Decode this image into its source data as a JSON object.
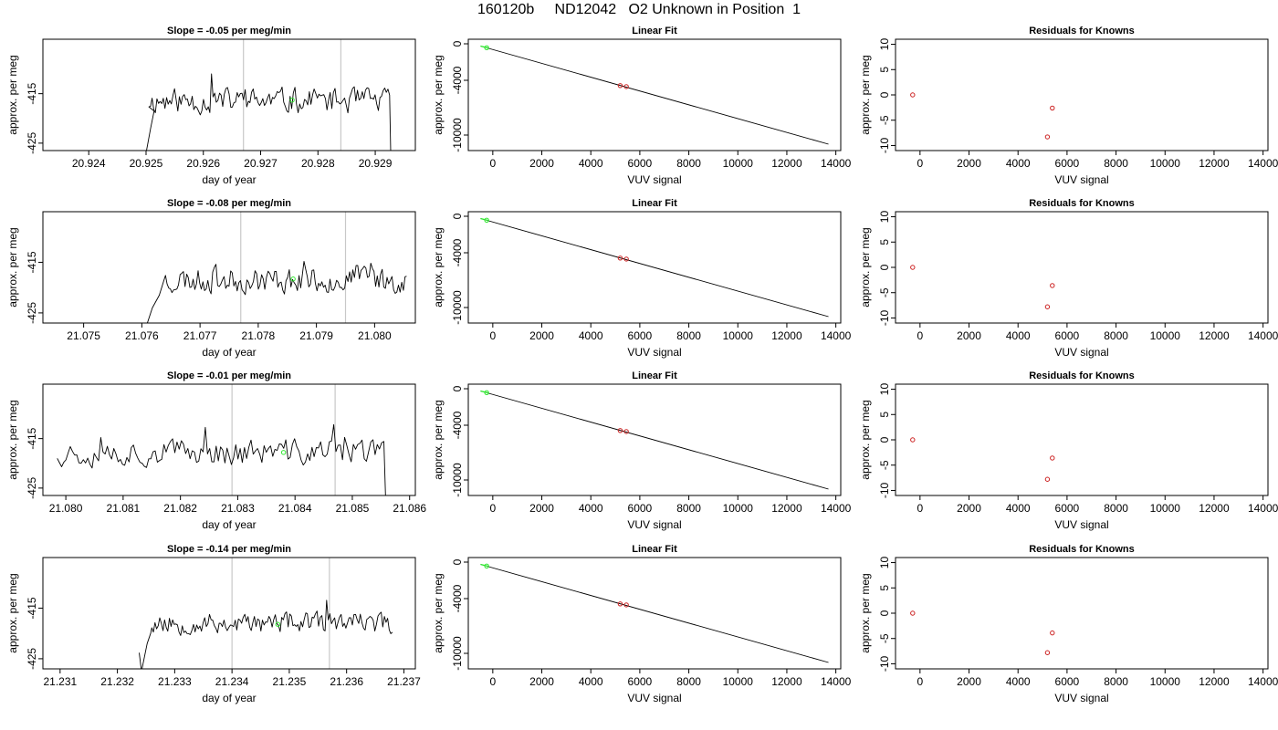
{
  "figure": {
    "title": "160120b     ND12042   O2 Unknown in Position  1",
    "colors": {
      "line": "#000000",
      "green": "#2ee82e",
      "red": "#cc2222",
      "vline": "#c8c8c8"
    }
  },
  "chart_data": [
    {
      "type": "line",
      "row": 0,
      "col": 0,
      "title": "Slope =  -0.05  per meg/min",
      "xlabel": "day of year",
      "ylabel": "approx. per meg",
      "xlim": [
        20.9232,
        20.9297
      ],
      "ylim": [
        -426.5,
        -404.0
      ],
      "xticks": [
        20.924,
        20.925,
        20.926,
        20.927,
        20.928,
        20.929
      ],
      "xtick_labels": [
        "20.924",
        "20.925",
        "20.926",
        "20.927",
        "20.928",
        "20.929"
      ],
      "yticks": [
        -415,
        -425
      ],
      "ytick_labels": [
        "-415",
        "-425"
      ],
      "vlines": [
        20.9267,
        20.9284
      ],
      "series": [
        {
          "start": 20.92505,
          "end": 20.92925,
          "level": -416.5,
          "amplitude": 1.6,
          "seed": 11,
          "rise": [
            [
              20.925,
              -427
            ],
            [
              20.92508,
              -422
            ],
            [
              20.92514,
              -418.5
            ]
          ],
          "drop": [
            [
              20.92927,
              -426.8
            ]
          ]
        }
      ],
      "green_point": [
        20.92755,
        -416.3
      ]
    },
    {
      "type": "scatter",
      "row": 0,
      "col": 1,
      "title": "Linear Fit",
      "xlabel": "VUV signal",
      "ylabel": "approx. per meg",
      "xlim": [
        -1000,
        14200
      ],
      "ylim": [
        -11700,
        500
      ],
      "xticks": [
        0,
        2000,
        4000,
        6000,
        8000,
        10000,
        12000,
        14000
      ],
      "xtick_labels": [
        "0",
        "2000",
        "4000",
        "6000",
        "8000",
        "10000",
        "12000",
        "14000"
      ],
      "yticks": [
        0,
        -4000,
        -10000
      ],
      "ytick_labels": [
        "0",
        "-4000",
        "-10000"
      ],
      "fit_line": [
        [
          -500,
          -250
        ],
        [
          13700,
          -11000
        ]
      ],
      "green_segment": [
        [
          -500,
          -250
        ],
        [
          -200,
          -450
        ]
      ],
      "green_points": [
        [
          -250,
          -430
        ]
      ],
      "red_points": [
        [
          5200,
          -4580
        ],
        [
          5450,
          -4690
        ]
      ]
    },
    {
      "type": "scatter",
      "row": 0,
      "col": 2,
      "title": "Residuals for Knowns",
      "xlabel": "VUV signal",
      "ylabel": "approx. per meg",
      "xlim": [
        -1000,
        14200
      ],
      "ylim": [
        -11,
        11
      ],
      "xticks": [
        0,
        2000,
        4000,
        6000,
        8000,
        10000,
        12000,
        14000
      ],
      "xtick_labels": [
        "0",
        "2000",
        "4000",
        "6000",
        "8000",
        "10000",
        "12000",
        "14000"
      ],
      "yticks": [
        10,
        5,
        0,
        -5,
        -10
      ],
      "ytick_labels": [
        "10",
        "5",
        "0",
        "-5",
        "-10"
      ],
      "red_points": [
        [
          -300,
          0
        ],
        [
          5400,
          -2.6
        ],
        [
          5200,
          -8.3
        ]
      ]
    },
    {
      "type": "line",
      "row": 1,
      "col": 0,
      "title": "Slope =  -0.08  per meg/min",
      "xlabel": "day of year",
      "ylabel": "approx. per meg",
      "xlim": [
        21.0743,
        21.0807
      ],
      "ylim": [
        -427.0,
        -405.0
      ],
      "xticks": [
        21.075,
        21.076,
        21.077,
        21.078,
        21.079,
        21.08
      ],
      "xtick_labels": [
        "21.075",
        "21.076",
        "21.077",
        "21.078",
        "21.079",
        "21.080"
      ],
      "yticks": [
        -415,
        -425
      ],
      "ytick_labels": [
        "-415",
        "-425"
      ],
      "vlines": [
        21.0777,
        21.0795
      ],
      "series": [
        {
          "start": 21.07635,
          "end": 21.08055,
          "level": -418.5,
          "amplitude": 1.6,
          "seed": 23,
          "rise": [
            [
              21.07608,
              -427.5
            ],
            [
              21.07618,
              -424
            ],
            [
              21.0763,
              -421.5
            ]
          ],
          "drop": []
        }
      ],
      "green_point": [
        21.0786,
        -418.3
      ]
    },
    {
      "type": "scatter",
      "row": 1,
      "col": 1,
      "title": "Linear Fit",
      "xlabel": "VUV signal",
      "ylabel": "approx. per meg",
      "xlim": [
        -1000,
        14200
      ],
      "ylim": [
        -11700,
        500
      ],
      "xticks": [
        0,
        2000,
        4000,
        6000,
        8000,
        10000,
        12000,
        14000
      ],
      "xtick_labels": [
        "0",
        "2000",
        "4000",
        "6000",
        "8000",
        "10000",
        "12000",
        "14000"
      ],
      "yticks": [
        0,
        -4000,
        -10000
      ],
      "ytick_labels": [
        "0",
        "-4000",
        "-10000"
      ],
      "fit_line": [
        [
          -500,
          -250
        ],
        [
          13700,
          -11000
        ]
      ],
      "green_segment": [
        [
          -500,
          -250
        ],
        [
          -200,
          -450
        ]
      ],
      "green_points": [
        [
          -250,
          -430
        ]
      ],
      "red_points": [
        [
          5200,
          -4580
        ],
        [
          5450,
          -4690
        ]
      ]
    },
    {
      "type": "scatter",
      "row": 1,
      "col": 2,
      "title": "Residuals for Knowns",
      "xlabel": "VUV signal",
      "ylabel": "approx. per meg",
      "xlim": [
        -1000,
        14200
      ],
      "ylim": [
        -11,
        11
      ],
      "xticks": [
        0,
        2000,
        4000,
        6000,
        8000,
        10000,
        12000,
        14000
      ],
      "xtick_labels": [
        "0",
        "2000",
        "4000",
        "6000",
        "8000",
        "10000",
        "12000",
        "14000"
      ],
      "yticks": [
        10,
        5,
        0,
        -5,
        -10
      ],
      "ytick_labels": [
        "10",
        "5",
        "0",
        "-5",
        "-10"
      ],
      "red_points": [
        [
          -300,
          0
        ],
        [
          5400,
          -3.6
        ],
        [
          5200,
          -7.8
        ]
      ]
    },
    {
      "type": "line",
      "row": 2,
      "col": 0,
      "title": "Slope =  -0.01  per meg/min",
      "xlabel": "day of year",
      "ylabel": "approx. per meg",
      "xlim": [
        21.0796,
        21.0861
      ],
      "ylim": [
        -426.5,
        -404.0
      ],
      "xticks": [
        21.08,
        21.081,
        21.082,
        21.083,
        21.084,
        21.085,
        21.086
      ],
      "xtick_labels": [
        "21.080",
        "21.081",
        "21.082",
        "21.083",
        "21.084",
        "21.085",
        "21.086"
      ],
      "yticks": [
        -415,
        -425
      ],
      "ytick_labels": [
        "-415",
        "-425"
      ],
      "vlines": [
        21.0829,
        21.0847
      ],
      "series": [
        {
          "start": 21.07985,
          "end": 21.08555,
          "level": -417.8,
          "amplitude": 1.7,
          "seed": 37,
          "rise": [],
          "drop": [
            [
              21.08558,
              -427
            ]
          ]
        }
      ],
      "green_point": [
        21.0838,
        -417.8
      ]
    },
    {
      "type": "scatter",
      "row": 2,
      "col": 1,
      "title": "Linear Fit",
      "xlabel": "VUV signal",
      "ylabel": "approx. per meg",
      "xlim": [
        -1000,
        14200
      ],
      "ylim": [
        -11700,
        500
      ],
      "xticks": [
        0,
        2000,
        4000,
        6000,
        8000,
        10000,
        12000,
        14000
      ],
      "xtick_labels": [
        "0",
        "2000",
        "4000",
        "6000",
        "8000",
        "10000",
        "12000",
        "14000"
      ],
      "yticks": [
        0,
        -4000,
        -10000
      ],
      "ytick_labels": [
        "0",
        "-4000",
        "-10000"
      ],
      "fit_line": [
        [
          -500,
          -250
        ],
        [
          13700,
          -11000
        ]
      ],
      "green_segment": [
        [
          -500,
          -250
        ],
        [
          -200,
          -450
        ]
      ],
      "green_points": [
        [
          -250,
          -430
        ]
      ],
      "red_points": [
        [
          5200,
          -4580
        ],
        [
          5450,
          -4690
        ]
      ]
    },
    {
      "type": "scatter",
      "row": 2,
      "col": 2,
      "title": "Residuals for Knowns",
      "xlabel": "VUV signal",
      "ylabel": "approx. per meg",
      "xlim": [
        -1000,
        14200
      ],
      "ylim": [
        -11,
        11
      ],
      "xticks": [
        0,
        2000,
        4000,
        6000,
        8000,
        10000,
        12000,
        14000
      ],
      "xtick_labels": [
        "0",
        "2000",
        "4000",
        "6000",
        "8000",
        "10000",
        "12000",
        "14000"
      ],
      "yticks": [
        10,
        5,
        0,
        -5,
        -10
      ],
      "ytick_labels": [
        "10",
        "5",
        "0",
        "-5",
        "-10"
      ],
      "red_points": [
        [
          -300,
          0
        ],
        [
          5400,
          -3.6
        ],
        [
          5200,
          -7.8
        ]
      ]
    },
    {
      "type": "line",
      "row": 3,
      "col": 0,
      "title": "Slope =  -0.14  per meg/min",
      "xlabel": "day of year",
      "ylabel": "approx. per meg",
      "xlim": [
        21.2307,
        21.2372
      ],
      "ylim": [
        -427.0,
        -405.0
      ],
      "xticks": [
        21.231,
        21.232,
        21.233,
        21.234,
        21.235,
        21.236,
        21.237
      ],
      "xtick_labels": [
        "21.231",
        "21.232",
        "21.233",
        "21.234",
        "21.235",
        "21.236",
        "21.237"
      ],
      "yticks": [
        -415,
        -425
      ],
      "ytick_labels": [
        "-415",
        "-425"
      ],
      "vlines": [
        21.234,
        21.2357
      ],
      "series": [
        {
          "start": 21.2326,
          "end": 21.2368,
          "level": -418.0,
          "amplitude": 1.3,
          "seed": 53,
          "rise": [
            [
              21.23238,
              -423.8
            ],
            [
              21.23242,
              -427.5
            ],
            [
              21.23252,
              -422
            ],
            [
              21.23258,
              -420
            ]
          ],
          "drop": []
        }
      ],
      "green_point": [
        21.2348,
        -418.2
      ]
    },
    {
      "type": "scatter",
      "row": 3,
      "col": 1,
      "title": "Linear Fit",
      "xlabel": "VUV signal",
      "ylabel": "approx. per meg",
      "xlim": [
        -1000,
        14200
      ],
      "ylim": [
        -11700,
        500
      ],
      "xticks": [
        0,
        2000,
        4000,
        6000,
        8000,
        10000,
        12000,
        14000
      ],
      "xtick_labels": [
        "0",
        "2000",
        "4000",
        "6000",
        "8000",
        "10000",
        "12000",
        "14000"
      ],
      "yticks": [
        0,
        -4000,
        -10000
      ],
      "ytick_labels": [
        "0",
        "-4000",
        "-10000"
      ],
      "fit_line": [
        [
          -500,
          -250
        ],
        [
          13700,
          -11000
        ]
      ],
      "green_segment": [
        [
          -500,
          -250
        ],
        [
          -200,
          -450
        ]
      ],
      "green_points": [
        [
          -250,
          -430
        ]
      ],
      "red_points": [
        [
          5200,
          -4580
        ],
        [
          5450,
          -4690
        ]
      ]
    },
    {
      "type": "scatter",
      "row": 3,
      "col": 2,
      "title": "Residuals for Knowns",
      "xlabel": "VUV signal",
      "ylabel": "approx. per meg",
      "xlim": [
        -1000,
        14200
      ],
      "ylim": [
        -11,
        11
      ],
      "xticks": [
        0,
        2000,
        4000,
        6000,
        8000,
        10000,
        12000,
        14000
      ],
      "xtick_labels": [
        "0",
        "2000",
        "4000",
        "6000",
        "8000",
        "10000",
        "12000",
        "14000"
      ],
      "yticks": [
        10,
        5,
        0,
        -5,
        -10
      ],
      "ytick_labels": [
        "10",
        "5",
        "0",
        "-5",
        "-10"
      ],
      "red_points": [
        [
          -300,
          0
        ],
        [
          5400,
          -3.9
        ],
        [
          5200,
          -7.8
        ]
      ]
    }
  ]
}
